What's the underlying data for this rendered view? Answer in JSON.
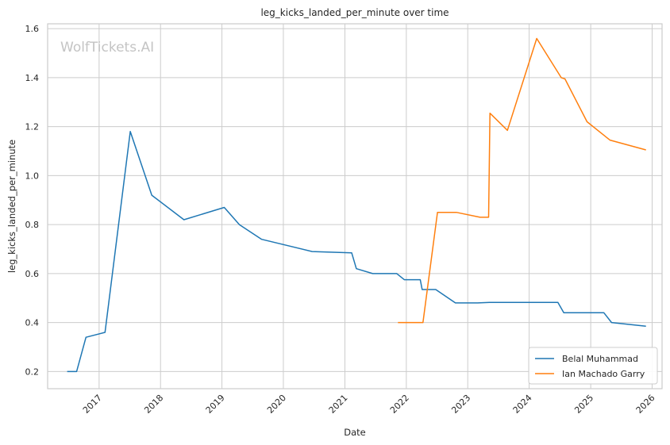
{
  "chart_data": {
    "type": "line",
    "title": "leg_kicks_landed_per_minute over time",
    "xlabel": "Date",
    "ylabel": "leg_kicks_landed_per_minute",
    "watermark": "WolfTickets.AI",
    "xlim": [
      "2016-03-01",
      "2026-03-01"
    ],
    "ylim": [
      0.13,
      1.62
    ],
    "x_ticks": [
      "2017",
      "2018",
      "2019",
      "2020",
      "2021",
      "2022",
      "2023",
      "2024",
      "2025",
      "2026"
    ],
    "y_ticks": [
      0.2,
      0.4,
      0.6,
      0.8,
      1.0,
      1.2,
      1.4,
      1.6
    ],
    "y_tick_labels": [
      "0.2",
      "0.4",
      "0.6",
      "0.8",
      "1.0",
      "1.2",
      "1.4",
      "1.6"
    ],
    "grid": true,
    "legend_position": "bottom-right",
    "series": [
      {
        "name": "Belal Muhammad",
        "color": "#1f77b4",
        "points": [
          [
            "2016-06-25",
            0.2
          ],
          [
            "2016-08-20",
            0.2
          ],
          [
            "2016-10-15",
            0.34
          ],
          [
            "2017-02-05",
            0.36
          ],
          [
            "2017-07-05",
            1.18
          ],
          [
            "2017-11-10",
            0.92
          ],
          [
            "2018-05-20",
            0.82
          ],
          [
            "2019-01-15",
            0.87
          ],
          [
            "2019-04-15",
            0.8
          ],
          [
            "2019-08-25",
            0.74
          ],
          [
            "2020-06-20",
            0.69
          ],
          [
            "2021-02-10",
            0.685
          ],
          [
            "2021-03-10",
            0.62
          ],
          [
            "2021-06-15",
            0.6
          ],
          [
            "2021-11-05",
            0.6
          ],
          [
            "2021-12-20",
            0.575
          ],
          [
            "2022-03-25",
            0.575
          ],
          [
            "2022-04-05",
            0.535
          ],
          [
            "2022-06-25",
            0.535
          ],
          [
            "2022-10-20",
            0.48
          ],
          [
            "2023-03-01",
            0.48
          ],
          [
            "2023-05-10",
            0.482
          ],
          [
            "2024-06-20",
            0.482
          ],
          [
            "2024-07-25",
            0.44
          ],
          [
            "2025-03-20",
            0.44
          ],
          [
            "2025-05-05",
            0.4
          ],
          [
            "2025-11-25",
            0.385
          ]
        ]
      },
      {
        "name": "Ian Machado Garry",
        "color": "#ff7f0e",
        "points": [
          [
            "2021-11-12",
            0.4
          ],
          [
            "2022-04-10",
            0.4
          ],
          [
            "2022-07-05",
            0.85
          ],
          [
            "2022-10-25",
            0.85
          ],
          [
            "2023-03-15",
            0.83
          ],
          [
            "2023-05-05",
            0.83
          ],
          [
            "2023-05-13",
            1.255
          ],
          [
            "2023-08-25",
            1.185
          ],
          [
            "2024-02-15",
            1.56
          ],
          [
            "2024-07-10",
            1.4
          ],
          [
            "2024-08-01",
            1.395
          ],
          [
            "2024-12-10",
            1.22
          ],
          [
            "2025-04-25",
            1.145
          ],
          [
            "2025-11-25",
            1.105
          ]
        ]
      }
    ]
  }
}
